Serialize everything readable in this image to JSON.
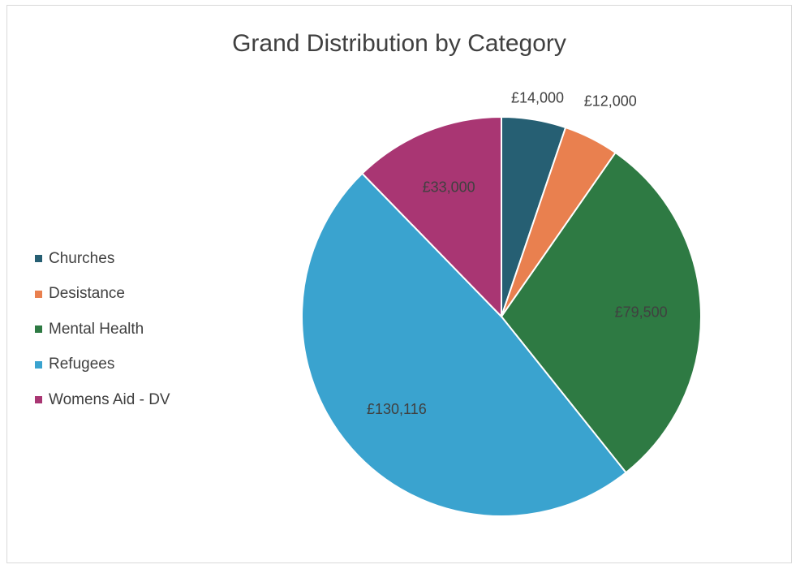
{
  "chart_data": {
    "type": "pie",
    "title": "Grand Distribution by Category",
    "legend_position": "left",
    "series": [
      {
        "name": "Churches",
        "value": 14000,
        "label": "£14,000",
        "color": "#265f73"
      },
      {
        "name": "Desistance",
        "value": 12000,
        "label": "£12,000",
        "color": "#e9804f"
      },
      {
        "name": "Mental Health",
        "value": 79500,
        "label": "£79,500",
        "color": "#2e7a43"
      },
      {
        "name": "Refugees",
        "value": 130116,
        "label": "£130,116",
        "color": "#3aa3cf"
      },
      {
        "name": "Womens Aid - DV",
        "value": 33000,
        "label": "£33,000",
        "color": "#a93673"
      }
    ]
  }
}
